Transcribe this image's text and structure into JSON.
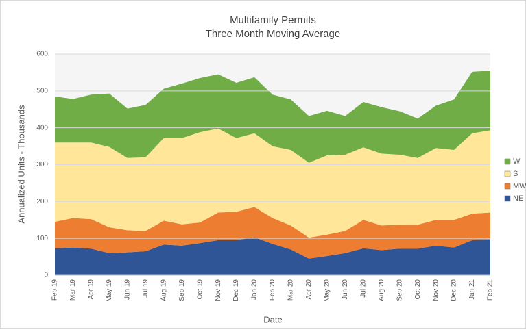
{
  "chart_data": {
    "type": "stacked_area",
    "title": "Multifamily Permits",
    "subtitle": "Three Month Moving Average",
    "x_label": "Date",
    "y_label": "Annualized Units - Thousands",
    "categories": [
      "Feb 19",
      "Mar 19",
      "Apr 19",
      "May 19",
      "Jun 19",
      "Jul 19",
      "Aug 19",
      "Sep 19",
      "Oct 19",
      "Nov 19",
      "Dec 19",
      "Jan 20",
      "Feb 20",
      "Mar 20",
      "Apr 20",
      "May 20",
      "Jun 20",
      "Jul 20",
      "Aug 20",
      "Sep 20",
      "Oct 20",
      "Nov 20",
      "Dec 20",
      "Jan 21",
      "Feb 21"
    ],
    "series": [
      {
        "name": "NE",
        "color": "#2f5597",
        "values": [
          73,
          75,
          72,
          60,
          62,
          65,
          83,
          80,
          87,
          95,
          95,
          103,
          85,
          70,
          45,
          52,
          60,
          73,
          68,
          72,
          72,
          80,
          75,
          95,
          97
        ]
      },
      {
        "name": "MW",
        "color": "#ed7d31",
        "values": [
          72,
          80,
          80,
          70,
          60,
          55,
          65,
          58,
          56,
          75,
          77,
          82,
          70,
          65,
          57,
          58,
          60,
          77,
          67,
          65,
          65,
          70,
          75,
          72,
          73
        ]
      },
      {
        "name": "S",
        "color": "#ffe699",
        "values": [
          215,
          205,
          208,
          218,
          196,
          200,
          224,
          234,
          245,
          228,
          200,
          200,
          195,
          205,
          203,
          215,
          207,
          197,
          195,
          190,
          181,
          195,
          190,
          218,
          223
        ]
      },
      {
        "name": "W",
        "color": "#70ad47",
        "values": [
          125,
          118,
          130,
          145,
          134,
          142,
          134,
          148,
          147,
          147,
          150,
          152,
          140,
          137,
          127,
          121,
          105,
          123,
          126,
          118,
          107,
          115,
          137,
          167,
          162
        ]
      }
    ],
    "ylim": [
      0,
      600
    ],
    "yticks": [
      0,
      100,
      200,
      300,
      400,
      500,
      600
    ],
    "grid": true,
    "legend": "right"
  }
}
